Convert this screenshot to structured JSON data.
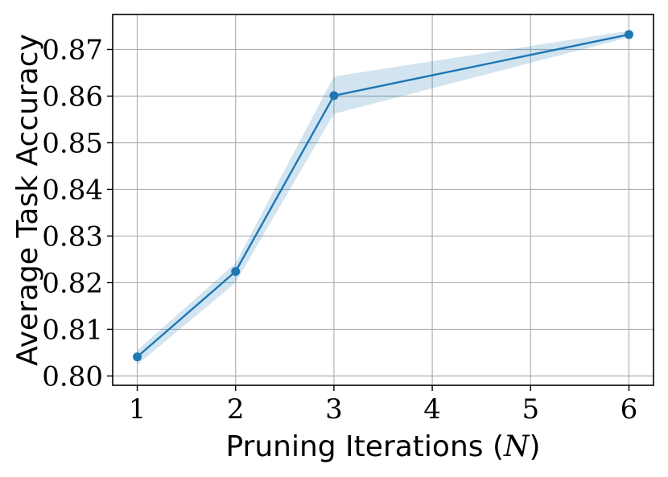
{
  "chart_data": {
    "type": "line",
    "x": [
      1,
      2,
      3,
      4,
      5,
      6
    ],
    "xlim": [
      0.75,
      6.25
    ],
    "ylim": [
      0.798,
      0.8775
    ],
    "xticks": [
      1,
      2,
      3,
      4,
      5,
      6
    ],
    "xtick_labels": [
      "1",
      "2",
      "3",
      "4",
      "5",
      "6"
    ],
    "yticks": [
      0.8,
      0.81,
      0.82,
      0.83,
      0.84,
      0.85,
      0.86,
      0.87
    ],
    "ytick_labels": [
      "0.80",
      "0.81",
      "0.82",
      "0.83",
      "0.84",
      "0.85",
      "0.86",
      "0.87"
    ],
    "xlabel_prefix": "Pruning Iterations (",
    "xlabel_var": "N",
    "xlabel_suffix": ")",
    "ylabel": "Average Task Accuracy",
    "grid": true,
    "series": [
      {
        "x": [
          1,
          2,
          3,
          6
        ],
        "values": [
          0.8041,
          0.8224,
          0.8601,
          0.8732
        ],
        "band_upper": [
          0.8055,
          0.8242,
          0.8642,
          0.874
        ],
        "band_lower": [
          0.8024,
          0.82,
          0.8562,
          0.8726
        ],
        "color": "#1f77b4",
        "band_color": "#1f77b4",
        "band_opacity": 0.2
      }
    ]
  }
}
